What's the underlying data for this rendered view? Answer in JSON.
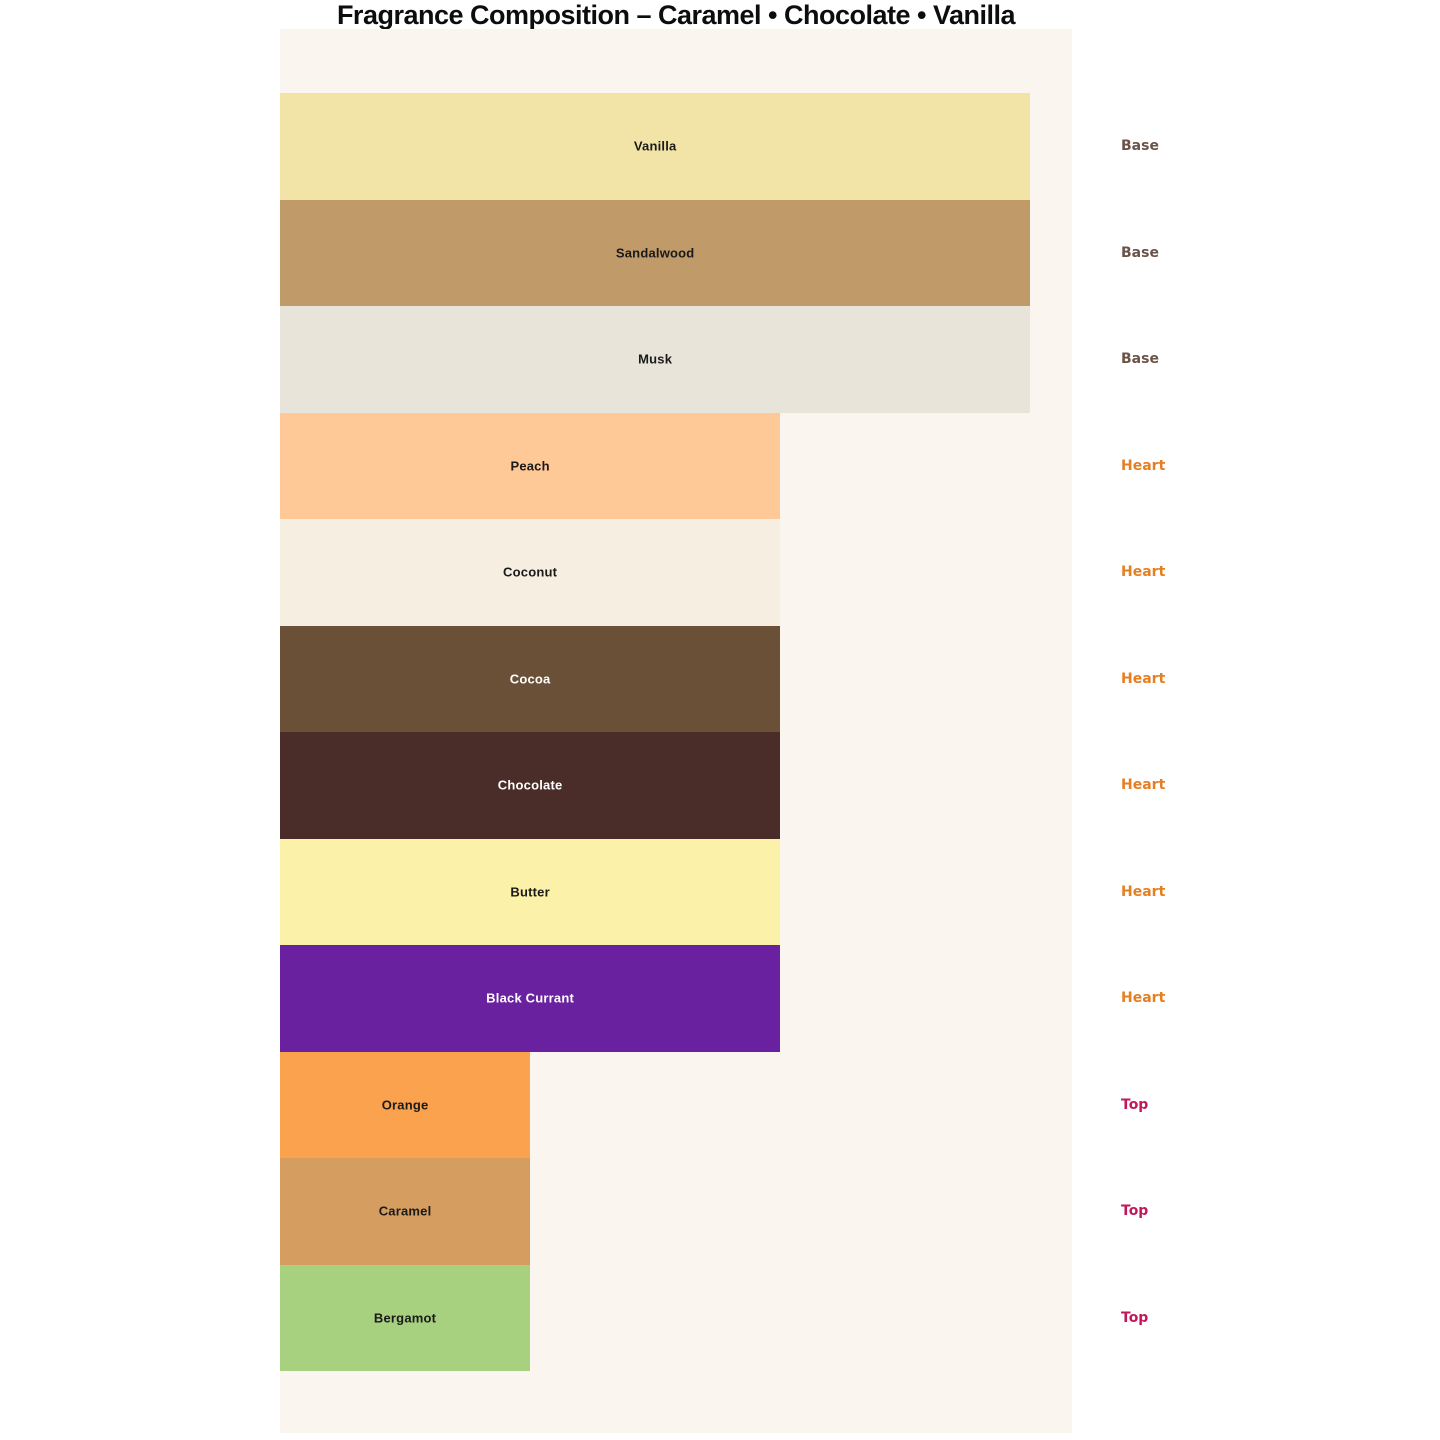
{
  "page": {
    "background": "#ffffff"
  },
  "chart_data": {
    "type": "bar",
    "orientation": "horizontal",
    "title": "Fragrance Composition – Caramel • Chocolate • Vanilla",
    "plot_background": "#faf6ef",
    "grid": false,
    "legend": false,
    "axes_visible": false,
    "xlim": [
      0,
      3.16
    ],
    "value_basis": "relative bar width read from chart (Top=1, Heart=2, Base=3)",
    "categories": [
      "Vanilla",
      "Sandalwood",
      "Musk",
      "Peach",
      "Coconut",
      "Cocoa",
      "Chocolate",
      "Butter",
      "Black Currant",
      "Orange",
      "Caramel",
      "Bergamot"
    ],
    "notes": [
      {
        "label": "Vanilla",
        "layer": "Base",
        "value": 3,
        "bar_color": "#f2e4a6",
        "text_color": "#1a1a1a"
      },
      {
        "label": "Sandalwood",
        "layer": "Base",
        "value": 3,
        "bar_color": "#c09a69",
        "text_color": "#1a1a1a"
      },
      {
        "label": "Musk",
        "layer": "Base",
        "value": 3,
        "bar_color": "#e8e4da",
        "text_color": "#1a1a1a"
      },
      {
        "label": "Peach",
        "layer": "Heart",
        "value": 2,
        "bar_color": "#fec997",
        "text_color": "#1a1a1a"
      },
      {
        "label": "Coconut",
        "layer": "Heart",
        "value": 2,
        "bar_color": "#f5eee1",
        "text_color": "#1a1a1a"
      },
      {
        "label": "Cocoa",
        "layer": "Heart",
        "value": 2,
        "bar_color": "#6a5037",
        "text_color": "#ffffff"
      },
      {
        "label": "Chocolate",
        "layer": "Heart",
        "value": 2,
        "bar_color": "#4a2c28",
        "text_color": "#ffffff"
      },
      {
        "label": "Butter",
        "layer": "Heart",
        "value": 2,
        "bar_color": "#fcf1a8",
        "text_color": "#1a1a1a"
      },
      {
        "label": "Black Currant",
        "layer": "Heart",
        "value": 2,
        "bar_color": "#6a219f",
        "text_color": "#ffffff"
      },
      {
        "label": "Orange",
        "layer": "Top",
        "value": 1,
        "bar_color": "#fba24e",
        "text_color": "#1a1a1a"
      },
      {
        "label": "Caramel",
        "layer": "Top",
        "value": 1,
        "bar_color": "#d69d61",
        "text_color": "#1a1a1a"
      },
      {
        "label": "Bergamot",
        "layer": "Top",
        "value": 1,
        "bar_color": "#a7d07f",
        "text_color": "#1a1a1a"
      }
    ],
    "layer_label_colors": {
      "Base": "#6b5347",
      "Heart": "#e67e22",
      "Top": "#c2185b"
    }
  }
}
